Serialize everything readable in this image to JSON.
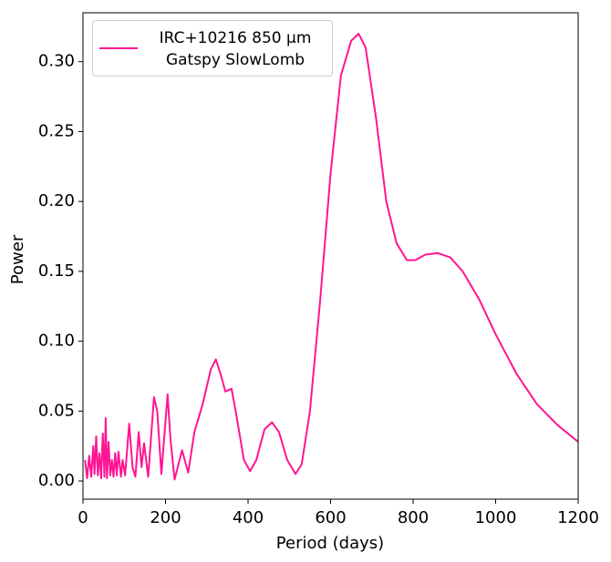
{
  "chart_data": {
    "type": "line",
    "xlabel": "Period (days)",
    "ylabel": "Power",
    "xlim": [
      0,
      1200
    ],
    "xticks": [
      0,
      200,
      400,
      600,
      800,
      1000,
      1200
    ],
    "ylim": [
      -0.013,
      0.335
    ],
    "yticks": [
      {
        "value": 0,
        "label": "0.00"
      },
      0.05,
      {
        "value": 0.1,
        "label": "0.10"
      },
      0.15,
      {
        "value": 0.2,
        "label": "0.20"
      },
      0.25,
      {
        "value": 0.3,
        "label": "0.30"
      }
    ],
    "legend": "upper left",
    "series": [
      {
        "name": "IRC+10216 850 μm\nGatspy SlowLomb",
        "color": "#ff1493",
        "x": [
          5,
          10,
          15,
          20,
          25,
          28,
          32,
          36,
          40,
          44,
          48,
          52,
          55,
          58,
          62,
          66,
          70,
          74,
          78,
          82,
          86,
          92,
          96,
          102,
          112,
          120,
          127,
          135,
          142,
          148,
          158,
          172,
          180,
          190,
          205,
          212,
          222,
          240,
          255,
          270,
          290,
          310,
          322,
          335,
          345,
          360,
          370,
          390,
          405,
          420,
          440,
          458,
          475,
          495,
          515,
          530,
          550,
          575,
          600,
          625,
          650,
          668,
          685,
          710,
          735,
          760,
          785,
          805,
          830,
          860,
          890,
          920,
          960,
          1000,
          1050,
          1100,
          1150,
          1200
        ],
        "values": [
          0.015,
          0.002,
          0.018,
          0.003,
          0.025,
          0.005,
          0.032,
          0.004,
          0.02,
          0.002,
          0.034,
          0.003,
          0.045,
          0.002,
          0.028,
          0.004,
          0.015,
          0.003,
          0.02,
          0.004,
          0.021,
          0.003,
          0.015,
          0.004,
          0.041,
          0.01,
          0.003,
          0.035,
          0.01,
          0.027,
          0.003,
          0.06,
          0.05,
          0.005,
          0.062,
          0.03,
          0.001,
          0.022,
          0.006,
          0.035,
          0.055,
          0.08,
          0.087,
          0.075,
          0.064,
          0.066,
          0.05,
          0.015,
          0.007,
          0.015,
          0.037,
          0.042,
          0.035,
          0.015,
          0.005,
          0.012,
          0.05,
          0.13,
          0.22,
          0.29,
          0.315,
          0.32,
          0.31,
          0.26,
          0.2,
          0.17,
          0.158,
          0.158,
          0.162,
          0.163,
          0.16,
          0.15,
          0.13,
          0.105,
          0.077,
          0.055,
          0.04,
          0.028
        ]
      }
    ]
  }
}
